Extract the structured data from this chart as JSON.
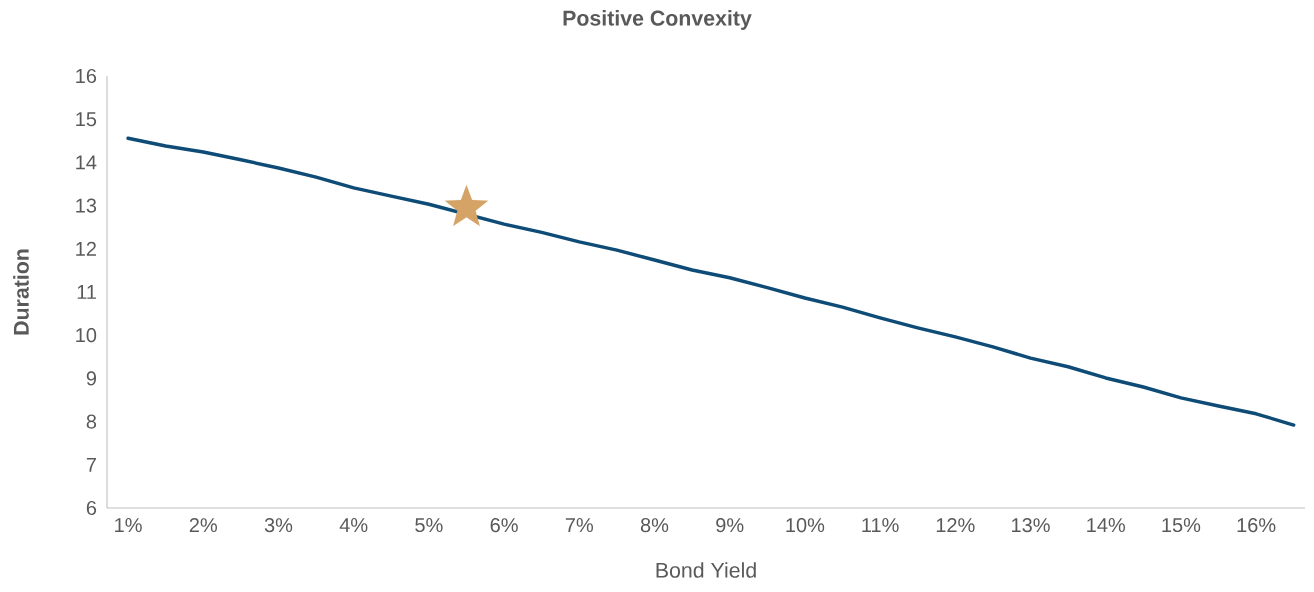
{
  "chart_data": {
    "type": "line",
    "title": "Positive Convexity",
    "xlabel": "Bond Yield",
    "ylabel": "Duration",
    "xlim": [
      0.72,
      16.65
    ],
    "ylim": [
      6,
      16
    ],
    "xticks": [
      {
        "value": 1,
        "label": "1%"
      },
      {
        "value": 2,
        "label": "2%"
      },
      {
        "value": 3,
        "label": "3%"
      },
      {
        "value": 4,
        "label": "4%"
      },
      {
        "value": 5,
        "label": "5%"
      },
      {
        "value": 6,
        "label": "6%"
      },
      {
        "value": 7,
        "label": "7%"
      },
      {
        "value": 8,
        "label": "8%"
      },
      {
        "value": 9,
        "label": "9%"
      },
      {
        "value": 10,
        "label": "10%"
      },
      {
        "value": 11,
        "label": "11%"
      },
      {
        "value": 12,
        "label": "12%"
      },
      {
        "value": 13,
        "label": "13%"
      },
      {
        "value": 14,
        "label": "14%"
      },
      {
        "value": 15,
        "label": "15%"
      },
      {
        "value": 16,
        "label": "16%"
      }
    ],
    "yticks": [
      6,
      7,
      8,
      9,
      10,
      11,
      12,
      13,
      14,
      15,
      16
    ],
    "series": [
      {
        "color": "#0e4c77",
        "marker": "none",
        "x": [
          1,
          1.5,
          2,
          2.5,
          3,
          3.5,
          4,
          4.5,
          5,
          6,
          6.5,
          7,
          7.5,
          8,
          8.5,
          9,
          9.5,
          10,
          10.5,
          11,
          11.5,
          12,
          12.5,
          13,
          13.5,
          14,
          14.5,
          15,
          15.5,
          16,
          16.5
        ],
        "values": [
          14.56,
          14.38,
          14.24,
          14.06,
          13.87,
          13.66,
          13.41,
          13.22,
          13.03,
          12.57,
          12.38,
          12.16,
          11.97,
          11.74,
          11.51,
          11.33,
          11.1,
          10.86,
          10.65,
          10.4,
          10.17,
          9.96,
          9.73,
          9.47,
          9.27,
          9.01,
          8.8,
          8.55,
          8.36,
          8.18,
          7.92
        ]
      },
      {
        "type": "scatter",
        "color": "#d4a365",
        "marker": "star",
        "x": [
          5.5
        ],
        "values": [
          12.95
        ]
      }
    ]
  }
}
